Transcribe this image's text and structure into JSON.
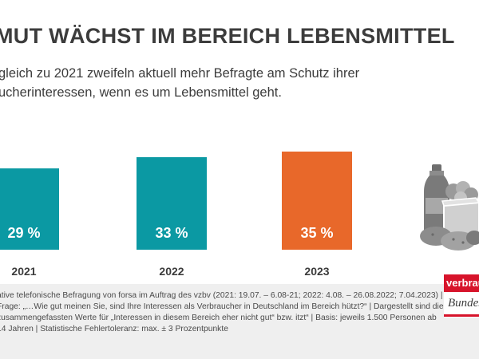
{
  "header": {
    "title": "MUT WÄCHST IM BEREICH LEBENSMITTEL",
    "subtitle": "gleich zu 2021 zweifeln aktuell mehr Befragte am Schutz ihrer ucherinteressen, wenn es um Lebensmittel geht."
  },
  "chart_data": {
    "type": "bar",
    "title": "MUT WÄCHST IM BEREICH LEBENSMITTEL",
    "categories": [
      "2021",
      "2022",
      "2023"
    ],
    "values": [
      29,
      33,
      35
    ],
    "value_labels": [
      "29 %",
      "33 %",
      "35 %"
    ],
    "colors": [
      "#0b99a3",
      "#0b99a3",
      "#e8682a"
    ],
    "unit": "%",
    "ylim": [
      0,
      35
    ],
    "xlabel": "",
    "ylabel": "",
    "grid": false,
    "legend": "none"
  },
  "icon": {
    "name": "groceries-icon"
  },
  "footer": {
    "footnote": "ative telefonische Befragung von forsa im Auftrag des vzbv (2021: 19.07. – 6.08-21; 2022: 4.08. – 26.08.2022; 7.04.2023) | Frage: „…Wie gut meinen Sie, sind Ihre Interessen als Verbraucher in Deutschland im Bereich hützt?“ | Dargestellt sind die zusammengefassten Werte für „Interessen in diesem Bereich eher nicht gut“ bzw. itzt“ | Basis: jeweils 1.500 Personen ab 14 Jahren | Statistische Fehlertoleranz: max. ± 3 Prozentpunkte"
  },
  "logo": {
    "word": "verbraucherzentrale",
    "sub": "Bundesverband",
    "brand_color": "#d7142b"
  }
}
